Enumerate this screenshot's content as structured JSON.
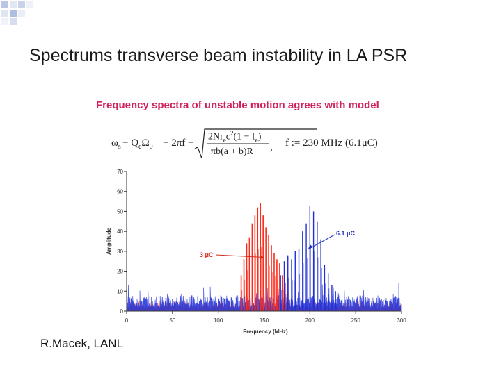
{
  "slide": {
    "title": "Spectrums transverse beam instability in LA PSR",
    "credit": "R.Macek, LANL"
  },
  "figure": {
    "title": "Frequency spectra of unstable motion agrees with model",
    "formula": {
      "lhs": "ω",
      "lhs_sub": "s",
      "eq_mid": " − Q",
      "q_sub": "e",
      "omega0": "Ω",
      "omega0_sub": "0",
      "minus_term": " − 2πf − ",
      "num": "2Nr",
      "num_sub": "e",
      "num_rest": "c",
      "num_sup": "2",
      "num_tail": "(1 − f",
      "num_tail_sub": "e",
      "num_close": ")",
      "den": "πb(a + b)R",
      "comma": ",",
      "f_def": "f := 230 MHz (6.1μC)"
    }
  },
  "colors": {
    "title_magenta": "#d0215a",
    "series_red": "#ff2a1a",
    "series_blue": "#1f2fd6",
    "label_red": "#d42a1a",
    "label_blue": "#2030c0"
  },
  "chart_data": {
    "type": "line",
    "title": "Frequency spectra of unstable motion agrees with model",
    "xlabel": "Frequency (MHz)",
    "ylabel": "Amplitude",
    "xlim": [
      0,
      300
    ],
    "ylim": [
      0,
      70
    ],
    "xticks": [
      0,
      50,
      100,
      150,
      200,
      250,
      300
    ],
    "yticks": [
      0,
      10,
      20,
      30,
      40,
      50,
      60,
      70
    ],
    "grid": false,
    "legend": "none",
    "series": [
      {
        "name": "3 μC",
        "color": "#ff2a1a",
        "peaks": [
          {
            "x": 125,
            "y": 18
          },
          {
            "x": 128,
            "y": 26
          },
          {
            "x": 131,
            "y": 34
          },
          {
            "x": 134,
            "y": 37
          },
          {
            "x": 137,
            "y": 44
          },
          {
            "x": 140,
            "y": 48
          },
          {
            "x": 143,
            "y": 52
          },
          {
            "x": 146,
            "y": 54
          },
          {
            "x": 149,
            "y": 48
          },
          {
            "x": 152,
            "y": 42
          },
          {
            "x": 155,
            "y": 38
          },
          {
            "x": 158,
            "y": 33
          },
          {
            "x": 161,
            "y": 29
          },
          {
            "x": 164,
            "y": 26
          },
          {
            "x": 167,
            "y": 24
          },
          {
            "x": 170,
            "y": 18
          },
          {
            "x": 173,
            "y": 14
          },
          {
            "x": 176,
            "y": 10
          }
        ]
      },
      {
        "name": "6.1 μC",
        "color": "#1f2fd6",
        "peaks": [
          {
            "x": 168,
            "y": 18
          },
          {
            "x": 172,
            "y": 25
          },
          {
            "x": 176,
            "y": 28
          },
          {
            "x": 180,
            "y": 26
          },
          {
            "x": 184,
            "y": 30
          },
          {
            "x": 188,
            "y": 31
          },
          {
            "x": 192,
            "y": 40
          },
          {
            "x": 196,
            "y": 44
          },
          {
            "x": 200,
            "y": 53
          },
          {
            "x": 204,
            "y": 50
          },
          {
            "x": 208,
            "y": 45
          },
          {
            "x": 212,
            "y": 36
          },
          {
            "x": 216,
            "y": 23
          },
          {
            "x": 220,
            "y": 19
          },
          {
            "x": 224,
            "y": 13
          },
          {
            "x": 228,
            "y": 10
          }
        ]
      }
    ],
    "annotations": [
      {
        "text": "3 μC",
        "color": "#d42a1a",
        "points_to": {
          "x": 150,
          "y": 27
        }
      },
      {
        "text": "6.1 μC",
        "color": "#2030c0",
        "points_to": {
          "x": 198,
          "y": 31
        }
      }
    ]
  }
}
